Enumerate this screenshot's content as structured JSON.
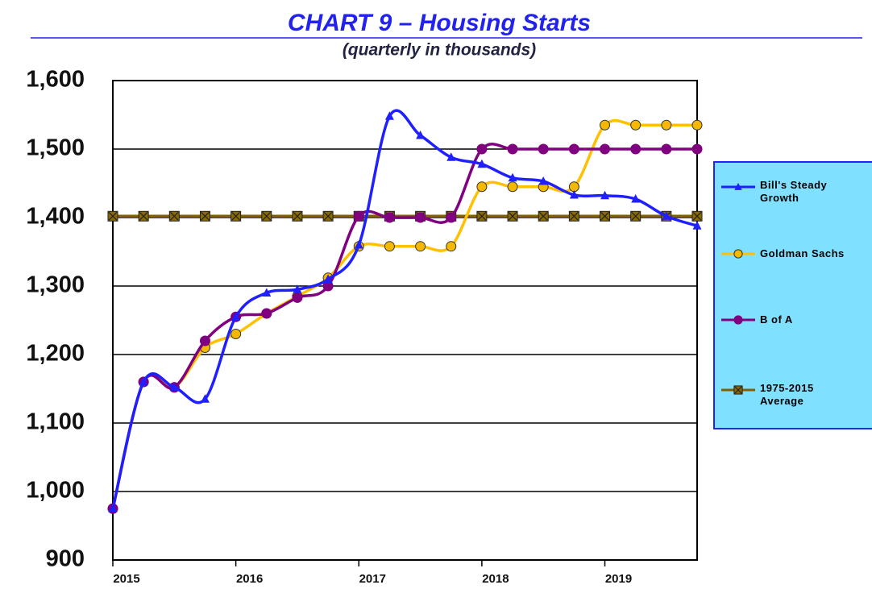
{
  "chart_data": {
    "type": "line",
    "title": "CHART 9 – Housing Starts",
    "subtitle": "(quarterly in thousands)",
    "categories": [
      "2015",
      null,
      null,
      null,
      "2016",
      null,
      null,
      null,
      "2017",
      null,
      null,
      null,
      "2018",
      null,
      null,
      null,
      "2019",
      null,
      null,
      null
    ],
    "series": [
      {
        "name": "Bill's Steady Growth",
        "color": "#1f1fff",
        "marker": "triangle",
        "values": [
          975,
          1160,
          1152,
          1135,
          1255,
          1290,
          1295,
          1310,
          1360,
          1548,
          1520,
          1488,
          1478,
          1458,
          1453,
          1433,
          1432,
          1427,
          1402,
          1388
        ]
      },
      {
        "name": "Goldman Sachs",
        "color": "#ffc000",
        "marker": "circle",
        "values": [
          975,
          1160,
          1152,
          1210,
          1230,
          1260,
          1285,
          1312,
          1358,
          1358,
          1358,
          1358,
          1445,
          1445,
          1445,
          1445,
          1535,
          1535,
          1535,
          1535
        ]
      },
      {
        "name": "B of A",
        "color": "#800080",
        "marker": "circle",
        "values": [
          975,
          1160,
          1152,
          1220,
          1255,
          1260,
          1283,
          1300,
          1402,
          1400,
          1400,
          1400,
          1500,
          1500,
          1500,
          1500,
          1500,
          1500,
          1500,
          1500
        ]
      },
      {
        "name": "1975-2015 Average",
        "color": "#806000",
        "marker": "square",
        "values": [
          1402,
          1402,
          1402,
          1402,
          1402,
          1402,
          1402,
          1402,
          1402,
          1402,
          1402,
          1402,
          1402,
          1402,
          1402,
          1402,
          1402,
          1402,
          1402,
          1402
        ]
      }
    ],
    "ylim": [
      900,
      1600
    ],
    "yticks": [
      900,
      {
        "value": 1000,
        "label": "1,000"
      },
      {
        "value": 1100,
        "label": "1,100"
      },
      {
        "value": 1200,
        "label": "1,200"
      },
      {
        "value": 1300,
        "label": "1,300"
      },
      {
        "value": 1400,
        "label": "1,400"
      },
      {
        "value": 1500,
        "label": "1,500"
      },
      {
        "value": 1600,
        "label": "1,600"
      }
    ],
    "grid": true,
    "legend": "right"
  }
}
